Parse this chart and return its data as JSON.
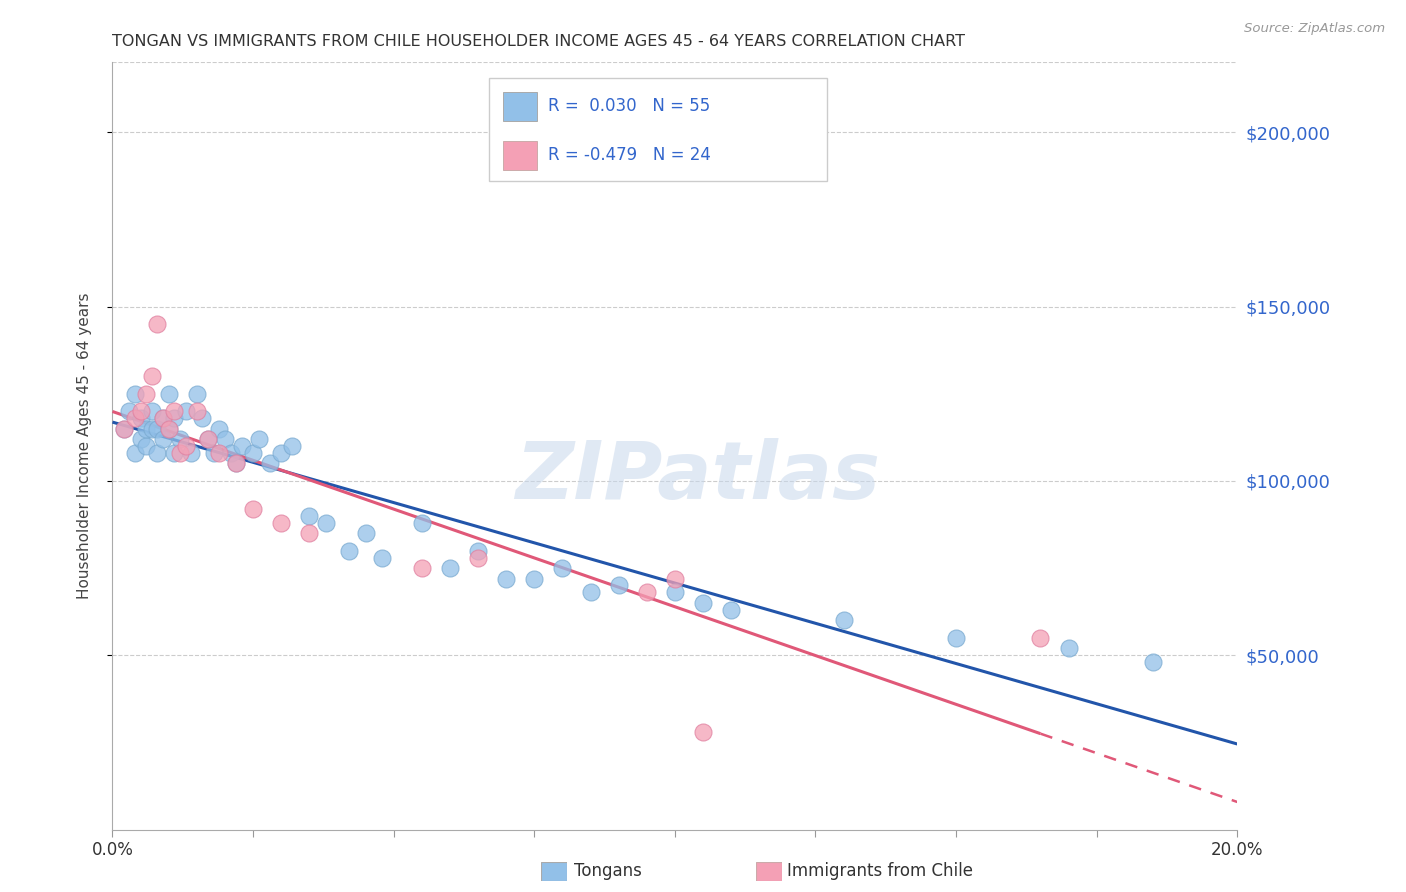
{
  "title": "TONGAN VS IMMIGRANTS FROM CHILE HOUSEHOLDER INCOME AGES 45 - 64 YEARS CORRELATION CHART",
  "source": "Source: ZipAtlas.com",
  "ylabel": "Householder Income Ages 45 - 64 years",
  "r_tongan": 0.03,
  "n_tongan": 55,
  "r_chile": -0.479,
  "n_chile": 24,
  "xlim": [
    0.0,
    0.2
  ],
  "ylim": [
    0,
    220000
  ],
  "yticks": [
    50000,
    100000,
    150000,
    200000
  ],
  "ytick_labels": [
    "$50,000",
    "$100,000",
    "$150,000",
    "$200,000"
  ],
  "xticks": [
    0.0,
    0.025,
    0.05,
    0.075,
    0.1,
    0.125,
    0.15,
    0.175,
    0.2
  ],
  "color_tongan": "#92C0E8",
  "color_chile": "#F4A0B5",
  "line_color_tongan": "#2255AA",
  "line_color_chile": "#E05878",
  "background_color": "#FFFFFF",
  "watermark": "ZIPatlas",
  "tongan_x": [
    0.002,
    0.003,
    0.004,
    0.004,
    0.005,
    0.005,
    0.006,
    0.006,
    0.007,
    0.007,
    0.008,
    0.008,
    0.009,
    0.009,
    0.01,
    0.01,
    0.011,
    0.011,
    0.012,
    0.013,
    0.014,
    0.015,
    0.016,
    0.017,
    0.018,
    0.019,
    0.02,
    0.021,
    0.022,
    0.023,
    0.025,
    0.026,
    0.028,
    0.03,
    0.032,
    0.035,
    0.038,
    0.042,
    0.045,
    0.048,
    0.055,
    0.06,
    0.065,
    0.07,
    0.075,
    0.08,
    0.085,
    0.09,
    0.1,
    0.105,
    0.11,
    0.13,
    0.15,
    0.17,
    0.185
  ],
  "tongan_y": [
    115000,
    120000,
    108000,
    125000,
    112000,
    118000,
    110000,
    115000,
    115000,
    120000,
    108000,
    115000,
    112000,
    118000,
    115000,
    125000,
    108000,
    118000,
    112000,
    120000,
    108000,
    125000,
    118000,
    112000,
    108000,
    115000,
    112000,
    108000,
    105000,
    110000,
    108000,
    112000,
    105000,
    108000,
    110000,
    90000,
    88000,
    80000,
    85000,
    78000,
    88000,
    75000,
    80000,
    72000,
    72000,
    75000,
    68000,
    70000,
    68000,
    65000,
    63000,
    60000,
    55000,
    52000,
    48000
  ],
  "chile_x": [
    0.002,
    0.004,
    0.005,
    0.006,
    0.007,
    0.008,
    0.009,
    0.01,
    0.011,
    0.012,
    0.013,
    0.015,
    0.017,
    0.019,
    0.022,
    0.025,
    0.03,
    0.035,
    0.055,
    0.065,
    0.095,
    0.1,
    0.165,
    0.105
  ],
  "chile_y": [
    115000,
    118000,
    120000,
    125000,
    130000,
    145000,
    118000,
    115000,
    120000,
    108000,
    110000,
    120000,
    112000,
    108000,
    105000,
    92000,
    88000,
    85000,
    75000,
    78000,
    68000,
    72000,
    55000,
    28000
  ]
}
